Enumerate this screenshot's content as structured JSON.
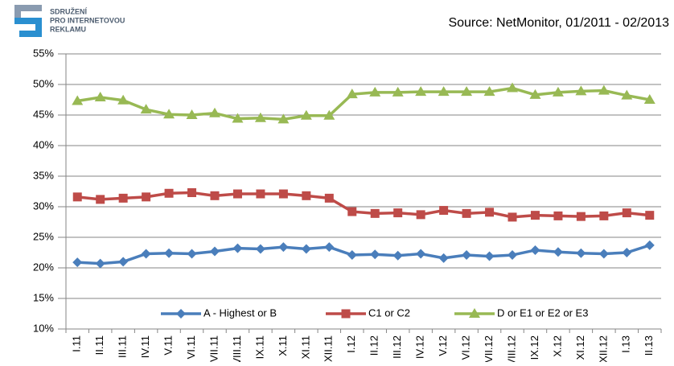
{
  "logo": {
    "lines": [
      "SDRUŽENÍ",
      "PRO INTERNETOVOU",
      "REKLAMU"
    ]
  },
  "chart_data": {
    "type": "line",
    "source": "Source:  NetMonitor, 01/2011 - 02/2013",
    "categories": [
      "I.11",
      "II.11",
      "III.11",
      "IV.11",
      "V.11",
      "VI.11",
      "VII.11",
      "VIII.11",
      "IX.11",
      "X.11",
      "XI.11",
      "XII.11",
      "I.12",
      "II.12",
      "III.12",
      "IV.12",
      "V.12",
      "VI.12",
      "VII.12",
      "VIII.12",
      "IX.12",
      "X.12",
      "XI.12",
      "XII.12",
      "I.13",
      "II.13"
    ],
    "series": [
      {
        "name": "A - Highest or B",
        "color": "#4a7ebb",
        "marker": "diamond",
        "values": [
          20.9,
          20.7,
          21.0,
          22.3,
          22.4,
          22.3,
          22.7,
          23.2,
          23.1,
          23.4,
          23.1,
          23.4,
          22.1,
          22.2,
          22.0,
          22.3,
          21.6,
          22.1,
          21.9,
          22.1,
          22.9,
          22.6,
          22.4,
          22.3,
          22.5,
          23.7
        ]
      },
      {
        "name": "C1  or C2",
        "color": "#be4b48",
        "marker": "square",
        "values": [
          31.6,
          31.2,
          31.4,
          31.6,
          32.2,
          32.3,
          31.8,
          32.1,
          32.1,
          32.1,
          31.8,
          31.4,
          29.2,
          28.9,
          29.0,
          28.7,
          29.4,
          28.9,
          29.1,
          28.3,
          28.6,
          28.5,
          28.4,
          28.5,
          29.0,
          28.6
        ]
      },
      {
        "name": "D or E1 or E2  or E3",
        "color": "#98b954",
        "marker": "triangle",
        "values": [
          47.3,
          47.9,
          47.4,
          45.9,
          45.1,
          45.0,
          45.3,
          44.4,
          44.5,
          44.3,
          44.9,
          44.9,
          48.4,
          48.7,
          48.7,
          48.8,
          48.8,
          48.8,
          48.8,
          49.4,
          48.3,
          48.7,
          48.9,
          49.0,
          48.2,
          47.5
        ]
      }
    ],
    "ylim": [
      10,
      55
    ],
    "yticks": [
      {
        "value": 10,
        "label": "10%"
      },
      {
        "value": 15,
        "label": "15%"
      },
      {
        "value": 20,
        "label": "20%"
      },
      {
        "value": 25,
        "label": "25%"
      },
      {
        "value": 30,
        "label": "30%"
      },
      {
        "value": 35,
        "label": "35%"
      },
      {
        "value": 40,
        "label": "40%"
      },
      {
        "value": 45,
        "label": "45%"
      },
      {
        "value": 50,
        "label": "50%"
      },
      {
        "value": 55,
        "label": "55%"
      }
    ],
    "grid": true,
    "legend": "bottom"
  }
}
